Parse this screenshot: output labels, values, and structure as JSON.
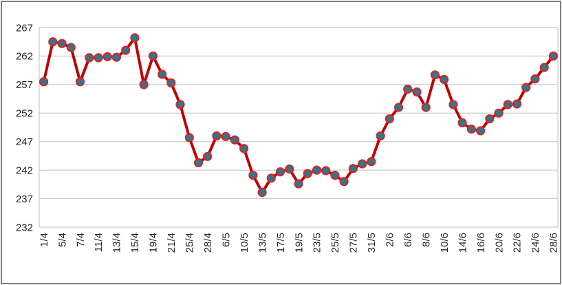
{
  "window": {
    "background": "#ffffff",
    "frame_border_color": "#7f7f7f"
  },
  "chart_data": {
    "type": "line",
    "title": "",
    "xlabel": "",
    "ylabel": "",
    "legend": "none",
    "grid": "horizontal",
    "ylim": [
      232,
      267
    ],
    "yticks": [
      232,
      237,
      242,
      247,
      252,
      257,
      262,
      267
    ],
    "x_labels": [
      "1/4",
      "",
      "5/4",
      "",
      "7/4",
      "",
      "11/4",
      "",
      "13/4",
      "",
      "15/4",
      "",
      "19/4",
      "",
      "21/4",
      "",
      "25/4",
      "",
      "28/4",
      "",
      "6/5",
      "",
      "10/5",
      "",
      "13/5",
      "",
      "17/5",
      "",
      "19/5",
      "",
      "23/5",
      "",
      "25/5",
      "",
      "27/5",
      "",
      "31/5",
      "",
      "2/6",
      "",
      "6/6",
      "",
      "8/6",
      "",
      "10/6",
      "",
      "14/6",
      "",
      "16/6",
      "",
      "20/6",
      "",
      "22/6",
      "",
      "24/6",
      "",
      "28/6"
    ],
    "values": [
      257.5,
      264.5,
      264.2,
      263.5,
      257.5,
      261.7,
      261.7,
      261.9,
      261.8,
      263.0,
      265.2,
      257.0,
      262.0,
      258.8,
      257.3,
      253.5,
      247.7,
      243.3,
      244.4,
      248.0,
      247.9,
      247.3,
      245.8,
      241.1,
      238.1,
      240.6,
      241.7,
      242.2,
      239.6,
      241.4,
      242.0,
      241.9,
      241.1,
      240.0,
      242.3,
      243.1,
      243.5,
      248.0,
      251.0,
      253.0,
      256.2,
      255.7,
      253.0,
      258.7,
      257.9,
      253.5,
      250.3,
      249.2,
      248.9,
      251.0,
      252.0,
      253.5,
      253.6,
      256.5,
      258.0,
      260.0,
      262.0
    ],
    "line_color": "#c00000",
    "marker_fill": "#1f7d99",
    "marker_edge": "#cc2b2b",
    "gridline_color": "#c0c0c0",
    "plot_border_color": "#bfbfbf",
    "tick_label_color": "#262626"
  }
}
